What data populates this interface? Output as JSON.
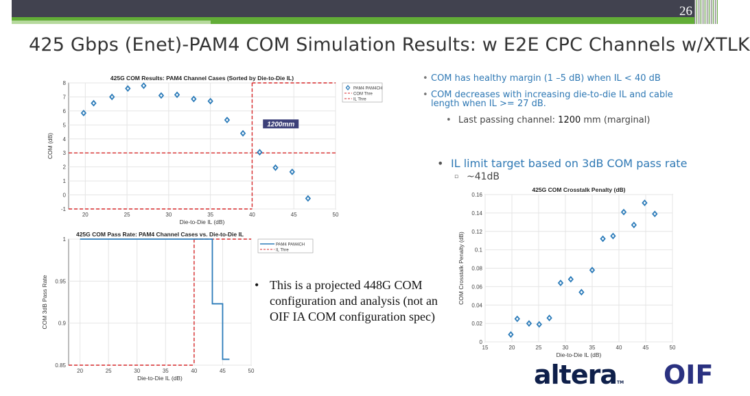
{
  "header": {
    "page_number": "26"
  },
  "title": "425 Gbps (Enet)-PAM4 COM Simulation Results: w E2E CPC Channels w/XTLK",
  "bullets": {
    "b1": "COM has healthy margin (1 –5 dB) when IL < 40 dB",
    "b2": "COM decreases with increasing die-to-die IL and cable length when IL >= 27 dB.",
    "b3_prefix": "Last passing channel: ",
    "b3_value": "1200",
    "b3_suffix": " mm (marginal)",
    "b4": "IL limit target based on 3dB COM pass rate",
    "b5": "~41dB",
    "note": "This is a projected 448G COM configuration and analysis (not an OIF IA COM configuration spec)"
  },
  "logos": {
    "altera": "altera",
    "tm": "TM",
    "oif": "OIF"
  },
  "colors": {
    "marker": "#2b7bb9",
    "threshold": "#d62728",
    "annotation_bg": "#3b3f78"
  },
  "chart_data": [
    {
      "type": "scatter",
      "title": "425G COM Results: PAM4 Channel Cases (Sorted by Die-to-Die IL)",
      "xlabel": "Die-to-Die IL (dB)",
      "ylabel": "COM (dB)",
      "xlim": [
        18,
        50
      ],
      "ylim": [
        -1,
        8
      ],
      "xticks": [
        20,
        25,
        30,
        35,
        40,
        45,
        50
      ],
      "yticks": [
        -1,
        0,
        1,
        2,
        3,
        4,
        5,
        6,
        7,
        8
      ],
      "x": [
        19.8,
        21,
        23.2,
        25.1,
        27,
        29.1,
        31,
        33,
        35,
        37,
        38.9,
        40.9,
        42.8,
        44.8,
        46.7
      ],
      "y": [
        5.85,
        6.55,
        7,
        7.6,
        7.8,
        7.1,
        7.15,
        6.85,
        6.7,
        5.35,
        4.4,
        3.05,
        1.95,
        1.65,
        -0.25
      ],
      "com_threshold": 3,
      "il_threshold": 40,
      "annotation": "1200mm",
      "legend": [
        "PAM4 PAM4CH",
        "COM Thre",
        "IL Thre"
      ],
      "legend_placement": "outside-top-right"
    },
    {
      "type": "line",
      "title": "425G COM Pass Rate: PAM4 Channel Cases vs. Die-to-Die IL",
      "xlabel": "Die-to-Die IL (dB)",
      "ylabel": "COM 3dB Pass Rate",
      "xlim": [
        18,
        50
      ],
      "ylim": [
        0.85,
        1
      ],
      "xticks": [
        20,
        25,
        30,
        35,
        40,
        45,
        50
      ],
      "yticks": [
        0.85,
        0.9,
        0.95,
        1
      ],
      "x": [
        20,
        43.2,
        43.2,
        45,
        45,
        46.2
      ],
      "y": [
        1,
        1,
        0.923,
        0.923,
        0.857,
        0.857
      ],
      "il_threshold": 40,
      "legend": [
        "PAM4 PAM4CH",
        "IL Thre"
      ],
      "legend_placement": "outside-top-right"
    },
    {
      "type": "scatter",
      "title": "425G COM Crosstalk Penalty (dB)",
      "xlabel": "Die-to-Die IL (dB)",
      "ylabel": "COM Crosstalk Penalty (dB)",
      "xlim": [
        15,
        50
      ],
      "ylim": [
        0,
        0.16
      ],
      "xticks": [
        15,
        20,
        25,
        30,
        35,
        40,
        45,
        50
      ],
      "yticks": [
        0,
        0.02,
        0.04,
        0.06,
        0.08,
        0.1,
        0.12,
        0.14,
        0.16
      ],
      "x": [
        19.8,
        21,
        23.2,
        25.1,
        27,
        29.1,
        31,
        33,
        35,
        37,
        38.9,
        40.9,
        42.8,
        44.8,
        46.7
      ],
      "y": [
        0.008,
        0.025,
        0.02,
        0.019,
        0.026,
        0.064,
        0.068,
        0.054,
        0.078,
        0.112,
        0.115,
        0.141,
        0.127,
        0.151,
        0.139
      ]
    }
  ]
}
